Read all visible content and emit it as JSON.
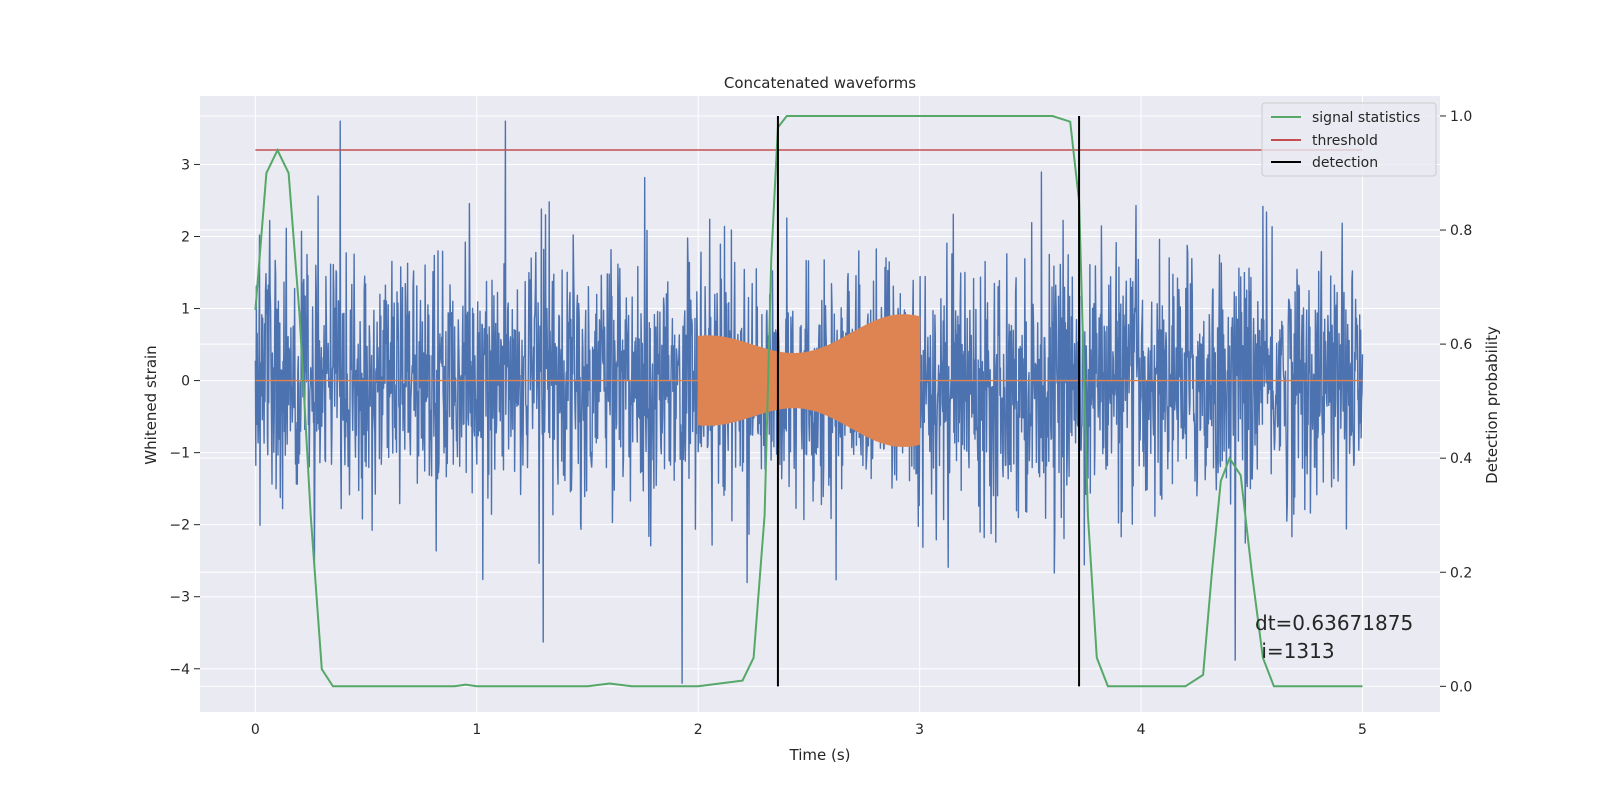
{
  "chart_data": {
    "type": "line",
    "title": "Concatenated waveforms",
    "xlabel": "Time (s)",
    "ylabel": "Whitened strain",
    "y2label": "Detection probability",
    "xlim": [
      -0.25,
      5.35
    ],
    "ylim": [
      -4.6,
      3.95
    ],
    "y2lim": [
      -0.045,
      1.035
    ],
    "x_ticks": [
      0,
      1,
      2,
      3,
      4,
      5
    ],
    "y_ticks": [
      -4,
      -3,
      -2,
      -1,
      0,
      1,
      2,
      3
    ],
    "y2_ticks": [
      0.0,
      0.2,
      0.4,
      0.6,
      0.8,
      1.0
    ],
    "x_tick_labels": [
      "0",
      "1",
      "2",
      "3",
      "4",
      "5"
    ],
    "y_tick_labels": [
      "−4",
      "−3",
      "−2",
      "−1",
      "0",
      "1",
      "2",
      "3"
    ],
    "y2_tick_labels": [
      "0.0",
      "0.2",
      "0.4",
      "0.6",
      "0.8",
      "1.0"
    ],
    "grid": true,
    "legend_position": "top-right",
    "legend": [
      "signal statistics",
      "threshold",
      "detection"
    ],
    "colors": {
      "strain": "#4c72b0",
      "injection": "#dd8452",
      "signal_statistics": "#55a868",
      "threshold": "#c44e52",
      "detection": "#000000",
      "plot_bg": "#eaeaf2",
      "grid": "#ffffff"
    },
    "strain_series": {
      "x_range": [
        0,
        5
      ],
      "typical_amplitude": 1.0,
      "max": 3.6,
      "min": -4.2
    },
    "injection_series": {
      "x_range": [
        2.0,
        3.0
      ],
      "amplitude_start": 0.62,
      "amplitude_end": 0.95,
      "zero_elsewhere": [
        0,
        5
      ]
    },
    "signal_statistics": {
      "x": [
        0.0,
        0.05,
        0.1,
        0.15,
        0.2,
        0.25,
        0.3,
        0.35,
        0.5,
        0.9,
        0.95,
        1.0,
        1.5,
        1.6,
        1.7,
        2.0,
        2.2,
        2.25,
        2.3,
        2.33,
        2.36,
        2.4,
        2.45,
        3.0,
        3.6,
        3.68,
        3.72,
        3.76,
        3.8,
        3.85,
        3.9,
        4.2,
        4.28,
        4.32,
        4.36,
        4.4,
        4.45,
        4.5,
        4.55,
        4.6,
        4.7,
        5.0
      ],
      "y": [
        0.66,
        0.9,
        0.94,
        0.9,
        0.65,
        0.3,
        0.03,
        0.0,
        0.0,
        0.0,
        0.003,
        0.0,
        0.0,
        0.005,
        0.0,
        0.0,
        0.01,
        0.05,
        0.3,
        0.75,
        0.98,
        1.0,
        1.0,
        1.0,
        1.0,
        0.99,
        0.85,
        0.3,
        0.05,
        0.0,
        0.0,
        0.0,
        0.02,
        0.2,
        0.36,
        0.4,
        0.37,
        0.2,
        0.05,
        0.0,
        0.0,
        0.0
      ]
    },
    "threshold": {
      "x": [
        0,
        5
      ],
      "y": 3.2
    },
    "detections": [
      2.36,
      3.72
    ],
    "annotation": {
      "lines": [
        "dt=0.63671875",
        " i=1313"
      ],
      "x": 4.5,
      "y": -3.4
    }
  }
}
